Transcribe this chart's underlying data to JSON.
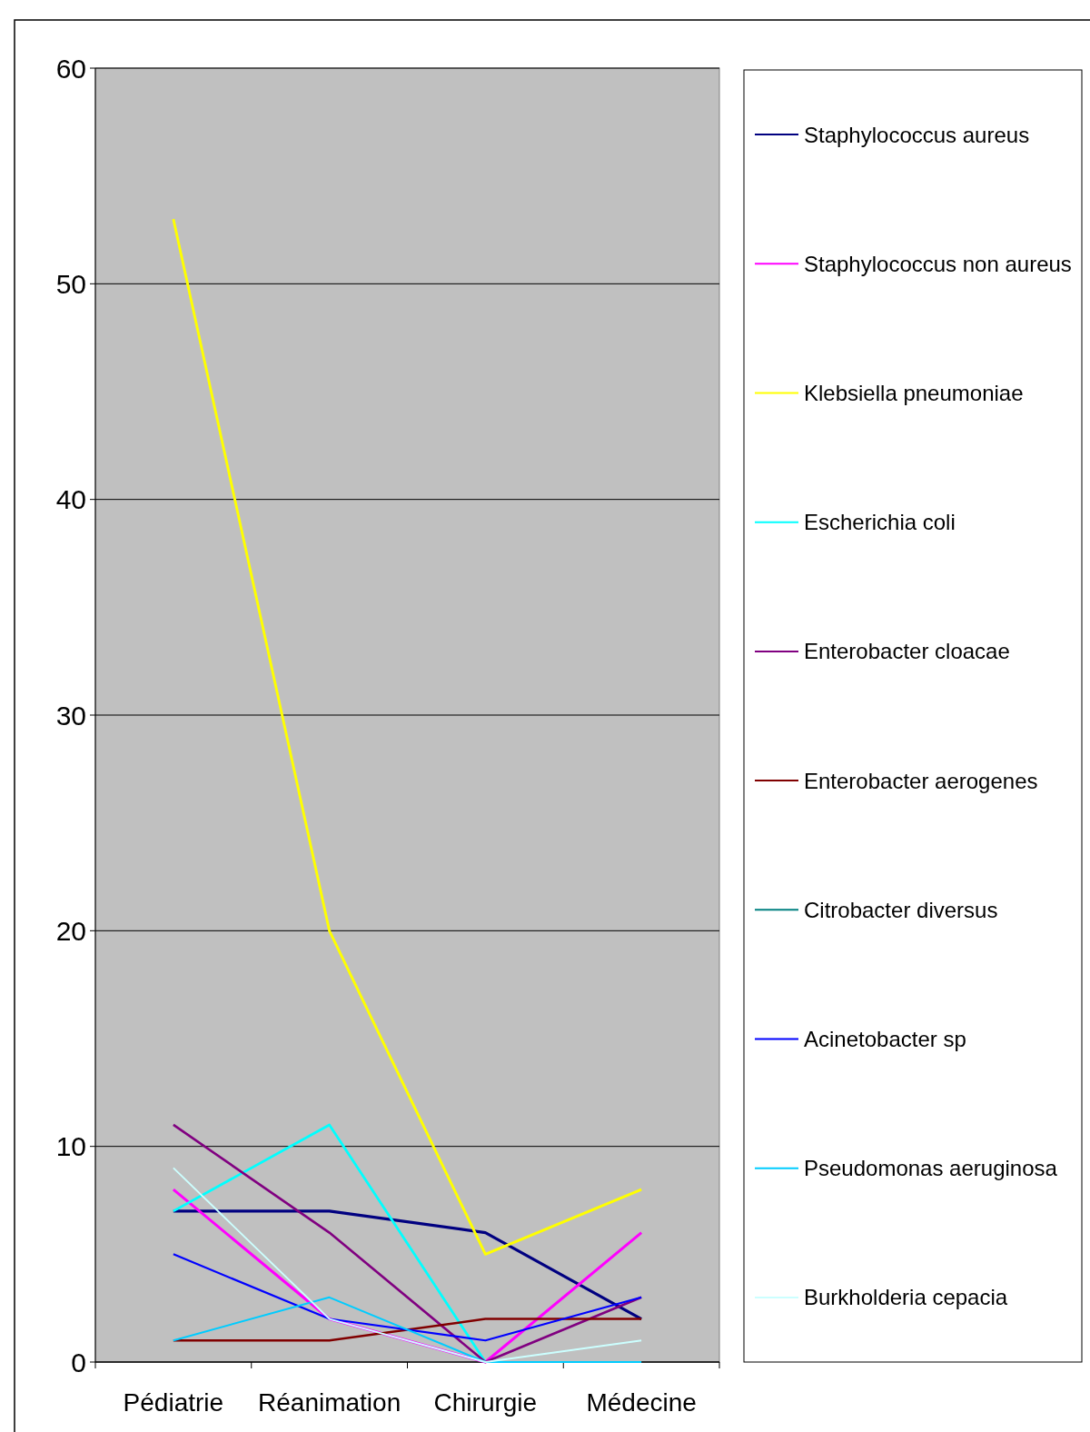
{
  "chart_data": {
    "type": "line",
    "categories": [
      "Pédiatrie",
      "Réanimation",
      "Chirurgie",
      "Médecine"
    ],
    "ylim": [
      0,
      60
    ],
    "yticks": [
      0,
      10,
      20,
      30,
      40,
      50,
      60
    ],
    "grid": "y",
    "legend": "right",
    "marker": "none",
    "series": [
      {
        "name": "Staphylococcus aureus",
        "color": "#000080",
        "values": [
          7,
          7,
          6,
          2
        ]
      },
      {
        "name": "Staphylococcus non aureus",
        "color": "#ff00ff",
        "values": [
          8,
          2,
          0,
          6
        ]
      },
      {
        "name": "Klebsiella pneumoniae",
        "color": "#ffff00",
        "values": [
          53,
          20,
          5,
          8
        ]
      },
      {
        "name": "Escherichia coli",
        "color": "#00ffff",
        "values": [
          7,
          11,
          0,
          null
        ]
      },
      {
        "name": "Enterobacter cloacae",
        "color": "#800080",
        "values": [
          11,
          6,
          0,
          3
        ]
      },
      {
        "name": "Enterobacter aerogenes",
        "color": "#800000",
        "values": [
          1,
          1,
          2,
          2
        ]
      },
      {
        "name": "Citrobacter diversus",
        "color": "#008080",
        "values": [
          null,
          null,
          null,
          null
        ]
      },
      {
        "name": "Acinetobacter sp",
        "color": "#0000ff",
        "values": [
          5,
          2,
          1,
          3
        ]
      },
      {
        "name": "Pseudomonas aeruginosa",
        "color": "#00ccff",
        "values": [
          1,
          3,
          0,
          0
        ]
      },
      {
        "name": "Burkholderia cepacia",
        "color": "#ccffff",
        "values": [
          9,
          2,
          0,
          1
        ]
      }
    ]
  }
}
